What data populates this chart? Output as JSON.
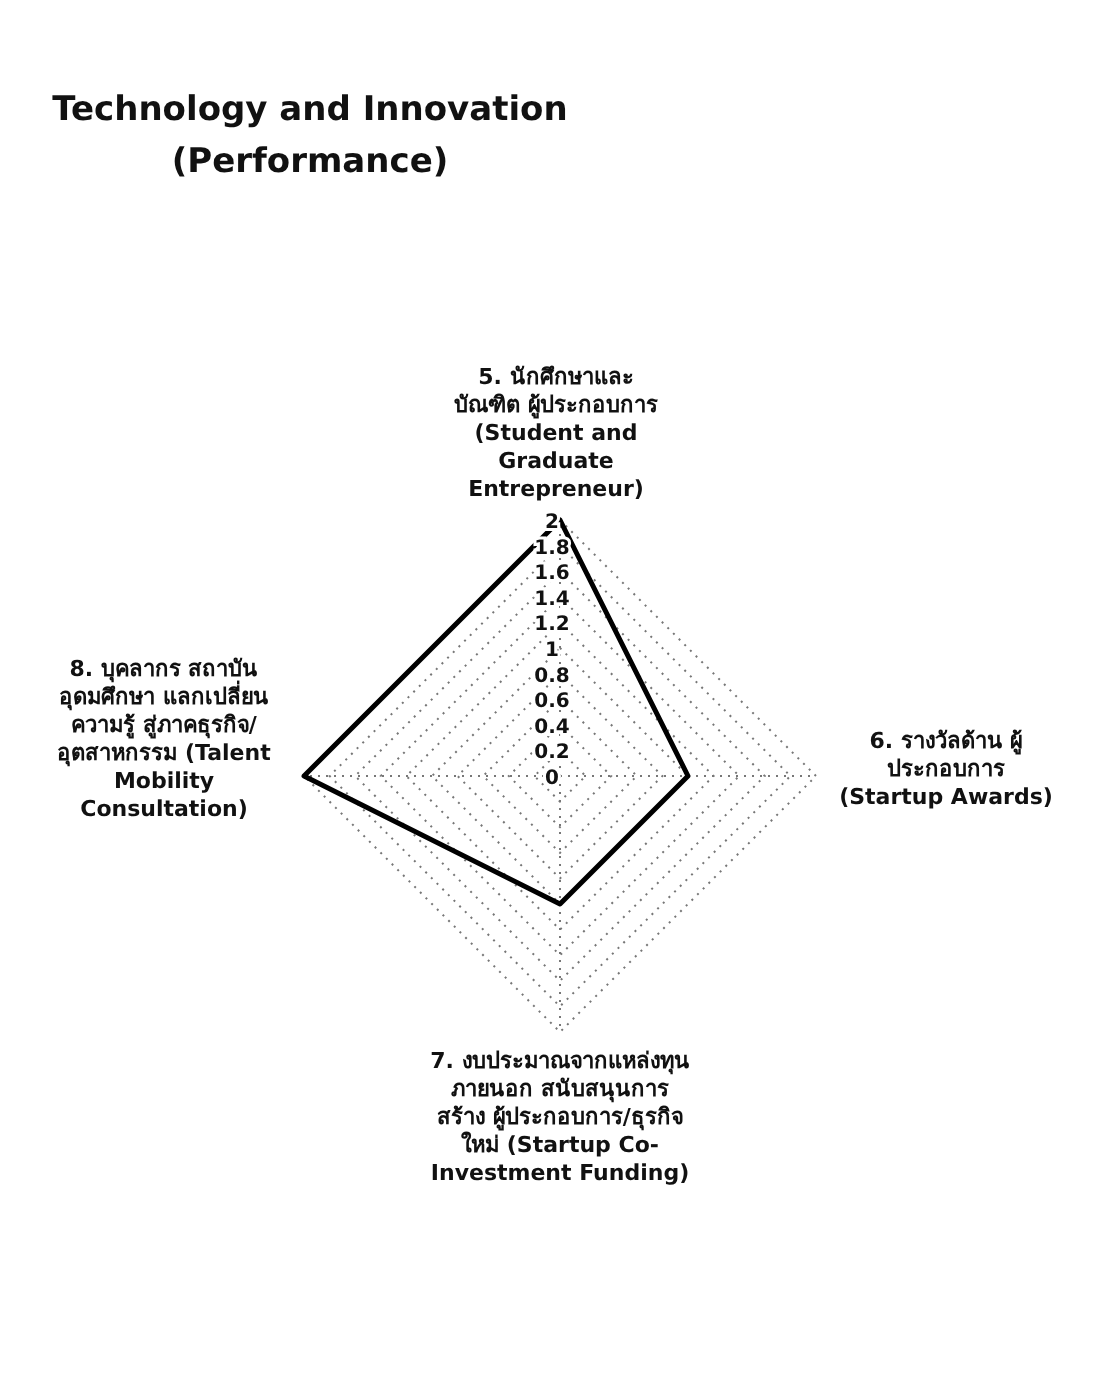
{
  "chart_data": {
    "type": "radar",
    "title": "Technology and Innovation (Performance)",
    "categories": [
      "5. นักศึกษาและบัณฑิต ผู้ประกอบการ (Student and Graduate Entrepreneur)",
      "6. รางวัลด้าน ผู้ประกอบการ (Startup Awards)",
      "7. งบประมาณจากแหล่งทุนภายนอก สนับสนุนการสร้าง ผู้ประกอบการ/ธุรกิจ ใหม่ (Startup Co-Investment Funding)",
      "8. บุคลากร สถาบันอุดมศึกษา แลกเปลี่ยน ความรู้ สู่ภาคธุรกิจ/ อุตสาหกรรม (Talent Mobility Consultation)"
    ],
    "series": [
      {
        "color": "#000000",
        "values": [
          2,
          1,
          1,
          2
        ]
      }
    ],
    "ylim": [
      0,
      2
    ],
    "yticks": [
      0,
      0.2,
      0.4,
      0.6,
      0.8,
      1,
      1.2,
      1.4,
      1.6,
      1.8,
      2
    ],
    "grid": true,
    "marker": "none",
    "line_style": "solid"
  }
}
